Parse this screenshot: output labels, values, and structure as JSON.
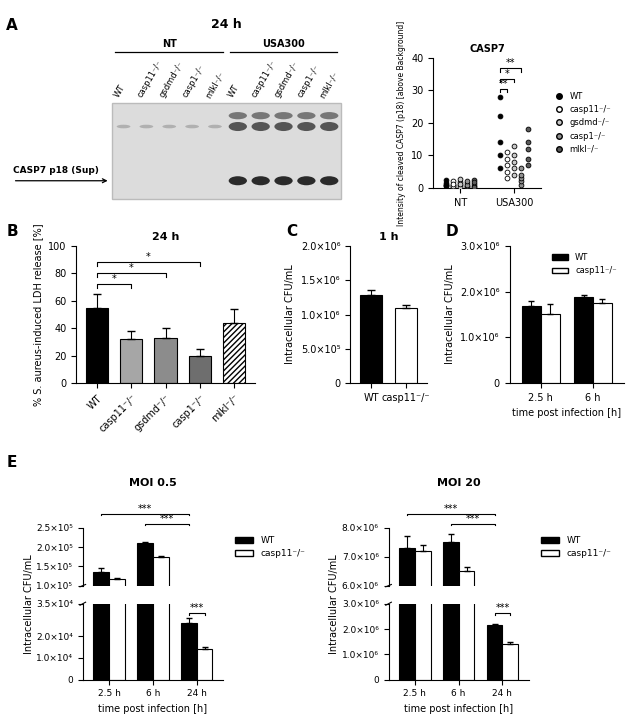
{
  "panel_labels": [
    "A",
    "B",
    "C",
    "D",
    "E"
  ],
  "blot": {
    "title": "24 h",
    "groups": [
      "NT",
      "USA300"
    ],
    "lanes": [
      "WT",
      "casp11⁻/⁻",
      "gsdmd⁻/⁻",
      "casp1⁻/⁻",
      "mlkl⁻/⁻"
    ],
    "band_label": "CASP7 p18 (Sup)"
  },
  "chart_data": [
    {
      "type": "scatter",
      "panel": "A",
      "title": "CASP7",
      "ylabel": "Intensity of cleaved CASP7 (p18) [above Background]",
      "categories": [
        "NT",
        "USA300"
      ],
      "ylim": [
        0,
        40
      ],
      "yticks": [
        0,
        10,
        20,
        30,
        40
      ],
      "legend": "right",
      "series": [
        {
          "name": "WT",
          "color": "#000000",
          "values": [
            [
              0.5,
              1.5,
              0.8,
              2.5,
              1.0
            ],
            [
              6,
              10,
              14,
              22,
              28
            ]
          ]
        },
        {
          "name": "casp11⁻/⁻",
          "color": "#ffffff",
          "values": [
            [
              0.3,
              1.0,
              2.0,
              0.6,
              1.2
            ],
            [
              3,
              5,
              7,
              9,
              11
            ]
          ]
        },
        {
          "name": "gsdmd⁻/⁻",
          "color": "#c8c8c8",
          "values": [
            [
              0.8,
              1.8,
              0.4,
              2.8,
              1.3
            ],
            [
              4,
              6,
              8,
              10,
              13
            ]
          ]
        },
        {
          "name": "casp1⁻/⁻",
          "color": "#909090",
          "values": [
            [
              0.2,
              0.7,
              1.5,
              0.9,
              2.2
            ],
            [
              1,
              2,
              3,
              4,
              6
            ]
          ]
        },
        {
          "name": "mlkl⁻/⁻",
          "color": "#5a5a5a",
          "values": [
            [
              0.6,
              1.2,
              2.4,
              0.3,
              1.7
            ],
            [
              7,
              9,
              12,
              14,
              18
            ]
          ]
        }
      ],
      "significance": [
        {
          "category": "USA300",
          "from": "WT",
          "to": "casp1⁻/⁻",
          "text": "**"
        },
        {
          "category": "USA300",
          "from": "WT",
          "to": "gsdmd⁻/⁻",
          "text": "*"
        },
        {
          "category": "USA300",
          "from": "WT",
          "to": "casp11⁻/⁻",
          "text": "**"
        }
      ]
    },
    {
      "type": "bar",
      "panel": "B",
      "title": "24 h",
      "ylabel": "% S. aureus-induced LDH release [%]",
      "categories": [
        "WT",
        "casp11⁻/⁻",
        "gsdmd⁻/⁻",
        "casp1⁻/⁻",
        "mlkl⁻/⁻"
      ],
      "values": [
        55,
        32,
        33,
        20,
        44
      ],
      "errors": [
        10,
        6,
        7,
        5,
        10
      ],
      "colors": [
        "#000000",
        "#a6a6a6",
        "#8c8c8c",
        "#6e6e6e",
        "#ffffff"
      ],
      "ylim": [
        0,
        100
      ],
      "yticks": [
        0,
        20,
        40,
        60,
        80,
        100
      ],
      "significance": [
        {
          "from": "WT",
          "to": "casp11⁻/⁻",
          "text": "*"
        },
        {
          "from": "WT",
          "to": "gsdmd⁻/⁻",
          "text": "*"
        },
        {
          "from": "WT",
          "to": "casp1⁻/⁻",
          "text": "*"
        }
      ]
    },
    {
      "type": "bar",
      "panel": "C",
      "title": "1 h",
      "ylabel": "Intracellular CFU/mL",
      "categories": [
        "WT",
        "casp11⁻/⁻"
      ],
      "values": [
        1280000,
        1100000
      ],
      "errors": [
        80000,
        40000
      ],
      "colors": [
        "#000000",
        "#ffffff"
      ],
      "ylim": [
        0,
        2000000
      ],
      "yticks": [
        0,
        {
          "value": 500000,
          "label": "5.0×10⁵"
        },
        {
          "value": 1000000,
          "label": "1.0×10⁶"
        },
        {
          "value": 1500000,
          "label": "1.5×10⁶"
        },
        {
          "value": 2000000,
          "label": "2.0×10⁶"
        }
      ]
    },
    {
      "type": "bar",
      "panel": "D",
      "xlabel": "time post infection [h]",
      "ylabel": "Intracellular CFU/mL",
      "categories": [
        "2.5 h",
        "6 h"
      ],
      "series": [
        {
          "name": "WT",
          "color": "#000000",
          "values": [
            1680000,
            1880000
          ],
          "errors": [
            110000,
            50000
          ]
        },
        {
          "name": "casp11⁻/⁻",
          "color": "#ffffff",
          "values": [
            1520000,
            1760000
          ],
          "errors": [
            220000,
            80000
          ]
        }
      ],
      "ylim": [
        0,
        3000000
      ],
      "yticks": [
        0,
        {
          "value": 1000000,
          "label": "1.0×10⁶"
        },
        {
          "value": 2000000,
          "label": "2.0×10⁶"
        },
        {
          "value": 3000000,
          "label": "3.0×10⁶"
        }
      ],
      "legend": "upper right"
    },
    {
      "type": "bar",
      "panel": "E",
      "title": "MOI 0.5",
      "xlabel": "time post infection [h]",
      "ylabel": "Intracellular CFU/mL",
      "categories": [
        "2.5 h",
        "6 h",
        "24 h"
      ],
      "series": [
        {
          "name": "WT",
          "color": "#000000",
          "values": [
            135000,
            210000,
            26000
          ],
          "errors": [
            10000,
            3000,
            2500
          ]
        },
        {
          "name": "casp11⁻/⁻",
          "color": "#ffffff",
          "values": [
            118000,
            175000,
            14000
          ],
          "errors": [
            3000,
            2000,
            1000
          ]
        }
      ],
      "y_segments": [
        {
          "ylim": [
            0,
            35000
          ],
          "yticks": [
            0,
            {
              "value": 10000,
              "label": "1.0×10⁴"
            },
            {
              "value": 20000,
              "label": "2.0×10⁴"
            },
            {
              "value": 35000,
              "label": "3.5×10⁴"
            }
          ]
        },
        {
          "ylim": [
            100000,
            250000
          ],
          "yticks": [
            {
              "value": 100000,
              "label": "1.0×10⁵"
            },
            {
              "value": 150000,
              "label": "1.5×10⁵"
            },
            {
              "value": 200000,
              "label": "2.0×10⁵"
            },
            {
              "value": 250000,
              "label": "2.5×10⁵"
            }
          ]
        }
      ],
      "legend": "right",
      "significance": [
        {
          "from": [
            "2.5 h",
            "WT"
          ],
          "to": [
            "24 h",
            "WT"
          ],
          "text": "***"
        },
        {
          "from": [
            "6 h",
            "WT"
          ],
          "to": [
            "24 h",
            "WT"
          ],
          "text": "***"
        },
        {
          "from": [
            "24 h",
            "WT"
          ],
          "to": [
            "24 h",
            "casp11⁻/⁻"
          ],
          "text": "***"
        }
      ]
    },
    {
      "type": "bar",
      "panel": "E",
      "title": "MOI 20",
      "xlabel": "time post infection [h]",
      "ylabel": "Intracellular CFU/mL",
      "categories": [
        "2.5 h",
        "6 h",
        "24 h"
      ],
      "series": [
        {
          "name": "WT",
          "color": "#000000",
          "values": [
            7300000,
            7500000,
            2150000
          ],
          "errors": [
            400000,
            300000,
            50000
          ]
        },
        {
          "name": "casp11⁻/⁻",
          "color": "#ffffff",
          "values": [
            7200000,
            6500000,
            1400000
          ],
          "errors": [
            200000,
            150000,
            80000
          ]
        }
      ],
      "y_segments": [
        {
          "ylim": [
            0,
            3000000
          ],
          "yticks": [
            0,
            {
              "value": 1000000,
              "label": "1.0×10⁶"
            },
            {
              "value": 2000000,
              "label": "2.0×10⁶"
            },
            {
              "value": 3000000,
              "label": "3.0×10⁶"
            }
          ]
        },
        {
          "ylim": [
            6000000,
            8000000
          ],
          "yticks": [
            {
              "value": 6000000,
              "label": "6.0×10⁶"
            },
            {
              "value": 7000000,
              "label": "7.0×10⁶"
            },
            {
              "value": 8000000,
              "label": "8.0×10⁶"
            }
          ]
        }
      ],
      "legend": "right",
      "significance": [
        {
          "from": [
            "2.5 h",
            "WT"
          ],
          "to": [
            "24 h",
            "WT"
          ],
          "text": "***"
        },
        {
          "from": [
            "6 h",
            "WT"
          ],
          "to": [
            "24 h",
            "WT"
          ],
          "text": "***"
        },
        {
          "from": [
            "24 h",
            "WT"
          ],
          "to": [
            "24 h",
            "casp11⁻/⁻"
          ],
          "text": "***"
        }
      ]
    }
  ]
}
